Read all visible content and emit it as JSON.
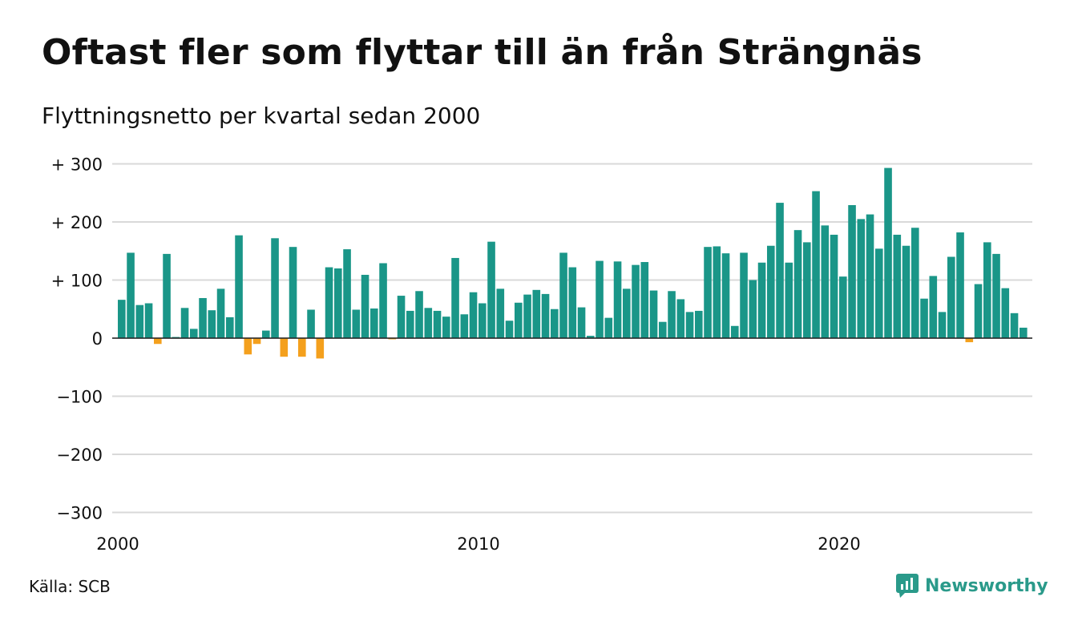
{
  "header": {
    "title": "Oftast fler som flyttar till än från Strängnäs",
    "subtitle": "Flyttningsnetto per kvartal sedan 2000"
  },
  "footer": {
    "source": "Källa: SCB",
    "brand": "Newsworthy"
  },
  "colors": {
    "positive": "#1a9688",
    "negative": "#f4a01d",
    "grid": "#d9d9d9",
    "zero_line": "#222222",
    "brand": "#2a9a8a"
  },
  "chart_data": {
    "type": "bar",
    "title": "Oftast fler som flyttar till än från Strängnäs",
    "subtitle": "Flyttningsnetto per kvartal sedan 2000",
    "xlabel": "",
    "ylabel": "",
    "ylim": [
      -300,
      300
    ],
    "yticks": [
      300,
      200,
      100,
      0,
      -100,
      -200,
      -300
    ],
    "ytick_labels": [
      "+ 300",
      "+ 200",
      "+ 100",
      "0",
      "−100",
      "−200",
      "−300"
    ],
    "xticks": [
      "2000",
      "2010",
      "2020"
    ],
    "grid": true,
    "legend": "none",
    "categories": [
      "2000 K1",
      "2000 K2",
      "2000 K3",
      "2000 K4",
      "2001 K1",
      "2001 K2",
      "2001 K3",
      "2001 K4",
      "2002 K1",
      "2002 K2",
      "2002 K3",
      "2002 K4",
      "2003 K1",
      "2003 K2",
      "2003 K3",
      "2003 K4",
      "2004 K1",
      "2004 K2",
      "2004 K3",
      "2004 K4",
      "2005 K1",
      "2005 K2",
      "2005 K3",
      "2005 K4",
      "2006 K1",
      "2006 K2",
      "2006 K3",
      "2006 K4",
      "2007 K1",
      "2007 K2",
      "2007 K3",
      "2007 K4",
      "2008 K1",
      "2008 K2",
      "2008 K3",
      "2008 K4",
      "2009 K1",
      "2009 K2",
      "2009 K3",
      "2009 K4",
      "2010 K1",
      "2010 K2",
      "2010 K3",
      "2010 K4",
      "2011 K1",
      "2011 K2",
      "2011 K3",
      "2011 K4",
      "2012 K1",
      "2012 K2",
      "2012 K3",
      "2012 K4",
      "2013 K1",
      "2013 K2",
      "2013 K3",
      "2013 K4",
      "2014 K1",
      "2014 K2",
      "2014 K3",
      "2014 K4",
      "2015 K1",
      "2015 K2",
      "2015 K3",
      "2015 K4",
      "2016 K1",
      "2016 K2",
      "2016 K3",
      "2016 K4",
      "2017 K1",
      "2017 K2",
      "2017 K3",
      "2017 K4",
      "2018 K1",
      "2018 K2",
      "2018 K3",
      "2018 K4",
      "2019 K1",
      "2019 K2",
      "2019 K3",
      "2019 K4",
      "2020 K1",
      "2020 K2",
      "2020 K3",
      "2020 K4",
      "2021 K1",
      "2021 K2",
      "2021 K3",
      "2021 K4",
      "2022 K1",
      "2022 K2",
      "2022 K3",
      "2022 K4",
      "2023 K1",
      "2023 K2",
      "2023 K3",
      "2023 K4",
      "2024 K1",
      "2024 K2",
      "2024 K3",
      "2024 K4",
      "2025 K1"
    ],
    "values": [
      66,
      147,
      57,
      60,
      -10,
      145,
      2,
      52,
      16,
      69,
      48,
      85,
      36,
      177,
      -28,
      -10,
      13,
      172,
      -32,
      157,
      -32,
      49,
      -35,
      122,
      120,
      153,
      49,
      109,
      51,
      129,
      -2,
      73,
      47,
      81,
      52,
      47,
      37,
      138,
      41,
      79,
      60,
      166,
      85,
      30,
      61,
      75,
      83,
      76,
      50,
      147,
      122,
      53,
      4,
      133,
      35,
      132,
      85,
      126,
      131,
      82,
      28,
      81,
      67,
      45,
      47,
      157,
      158,
      146,
      21,
      147,
      100,
      130,
      159,
      233,
      130,
      186,
      165,
      253,
      194,
      178,
      106,
      229,
      205,
      213,
      154,
      293,
      178,
      159,
      190,
      68,
      107,
      45,
      140,
      182,
      -7,
      93,
      165,
      145,
      86,
      43,
      18
    ]
  }
}
